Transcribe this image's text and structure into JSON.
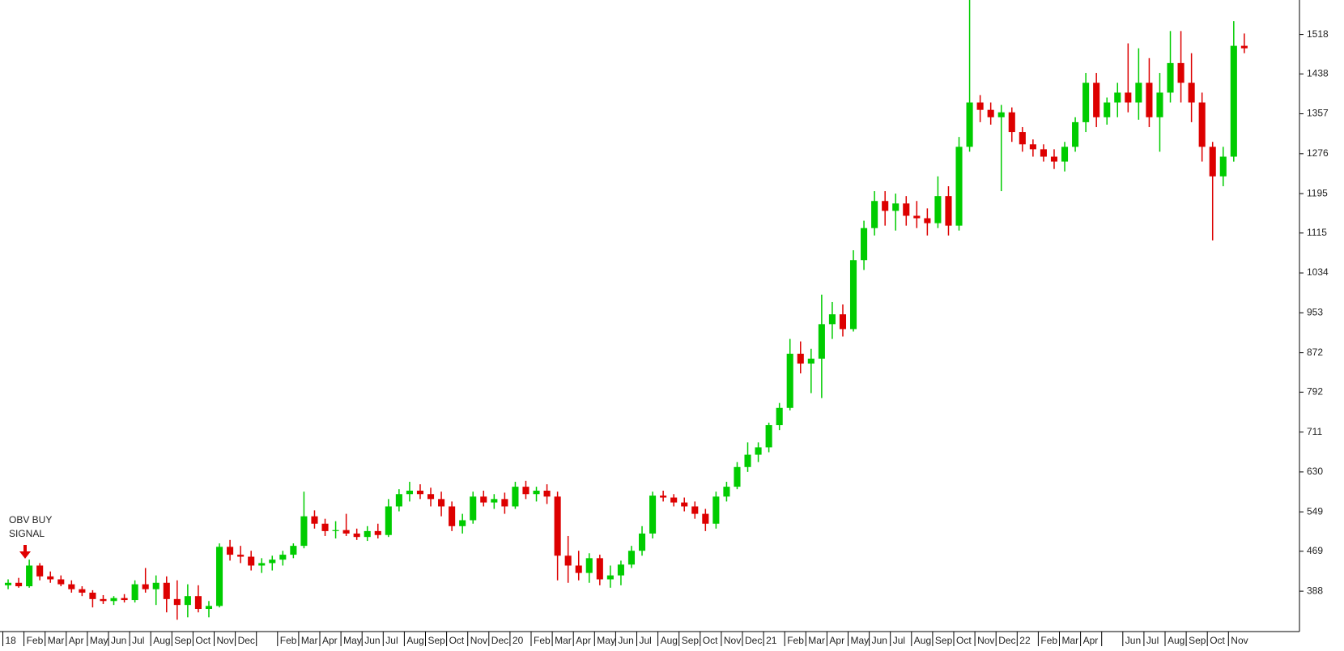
{
  "chart_data": {
    "type": "candlestick",
    "annotation": [
      "OBV BUY",
      "SIGNAL"
    ],
    "annotation_color": "#3333ff",
    "up_color": "#00cc00",
    "down_color": "#dd0000",
    "categories": [
      "18",
      "Feb",
      "Mar",
      "Apr",
      "May",
      "Jun",
      "Jul",
      "Aug",
      "Sep",
      "Oct",
      "Nov",
      "Dec",
      null,
      "Feb",
      "Mar",
      "Apr",
      "May",
      "Jun",
      "Jul",
      "Aug",
      "Sep",
      "Oct",
      "Nov",
      "Dec",
      "20",
      "Feb",
      "Mar",
      "Apr",
      "May",
      "Jun",
      "Jul",
      "Aug",
      "Sep",
      "Oct",
      "Nov",
      "Dec",
      "21",
      "Feb",
      "Mar",
      "Apr",
      "May",
      "Jun",
      "Jul",
      "Aug",
      "Sep",
      "Oct",
      "Nov",
      "Dec",
      "22",
      "Feb",
      "Mar",
      "Apr",
      null,
      "Jun",
      "Jul",
      "Aug",
      "Sep",
      "Oct",
      "Nov"
    ],
    "ylim": [
      306,
      1588
    ],
    "yticks": [
      388,
      469,
      549,
      630,
      711,
      792,
      872,
      953,
      1034,
      1115,
      1195,
      1276,
      1357,
      1438,
      1518
    ],
    "candles": [
      [
        400,
        412,
        392,
        405
      ],
      [
        405,
        415,
        395,
        398
      ],
      [
        398,
        452,
        395,
        440
      ],
      [
        440,
        445,
        410,
        418
      ],
      [
        418,
        428,
        405,
        412
      ],
      [
        412,
        420,
        398,
        402
      ],
      [
        402,
        410,
        385,
        392
      ],
      [
        392,
        398,
        378,
        385
      ],
      [
        385,
        390,
        355,
        372
      ],
      [
        372,
        380,
        362,
        368
      ],
      [
        368,
        378,
        360,
        374
      ],
      [
        374,
        382,
        365,
        370
      ],
      [
        370,
        410,
        365,
        402
      ],
      [
        402,
        435,
        385,
        392
      ],
      [
        392,
        420,
        360,
        405
      ],
      [
        405,
        418,
        345,
        372
      ],
      [
        372,
        410,
        330,
        360
      ],
      [
        360,
        402,
        335,
        378
      ],
      [
        378,
        400,
        345,
        352
      ],
      [
        352,
        368,
        335,
        358
      ],
      [
        358,
        485,
        355,
        478
      ],
      [
        478,
        492,
        450,
        462
      ],
      [
        462,
        480,
        445,
        458
      ],
      [
        458,
        470,
        430,
        440
      ],
      [
        440,
        455,
        425,
        445
      ],
      [
        445,
        460,
        430,
        452
      ],
      [
        452,
        470,
        440,
        462
      ],
      [
        462,
        485,
        455,
        480
      ],
      [
        480,
        590,
        475,
        540
      ],
      [
        540,
        552,
        515,
        525
      ],
      [
        525,
        535,
        500,
        510
      ],
      [
        510,
        530,
        495,
        512
      ],
      [
        512,
        545,
        500,
        505
      ],
      [
        505,
        515,
        492,
        498
      ],
      [
        498,
        520,
        490,
        510
      ],
      [
        510,
        525,
        495,
        502
      ],
      [
        502,
        575,
        498,
        560
      ],
      [
        560,
        595,
        550,
        585
      ],
      [
        585,
        610,
        570,
        592
      ],
      [
        592,
        605,
        575,
        585
      ],
      [
        585,
        598,
        560,
        575
      ],
      [
        575,
        590,
        540,
        560
      ],
      [
        560,
        570,
        510,
        520
      ],
      [
        520,
        545,
        505,
        532
      ],
      [
        532,
        590,
        525,
        580
      ],
      [
        580,
        592,
        560,
        568
      ],
      [
        568,
        585,
        555,
        575
      ],
      [
        575,
        588,
        545,
        560
      ],
      [
        560,
        610,
        555,
        600
      ],
      [
        600,
        612,
        575,
        585
      ],
      [
        585,
        600,
        570,
        592
      ],
      [
        592,
        605,
        565,
        580
      ],
      [
        580,
        590,
        410,
        460
      ],
      [
        460,
        500,
        405,
        440
      ],
      [
        440,
        470,
        410,
        425
      ],
      [
        425,
        465,
        405,
        455
      ],
      [
        455,
        462,
        400,
        412
      ],
      [
        412,
        440,
        395,
        420
      ],
      [
        420,
        450,
        400,
        442
      ],
      [
        442,
        480,
        435,
        470
      ],
      [
        470,
        520,
        460,
        505
      ],
      [
        505,
        590,
        495,
        582
      ],
      [
        582,
        592,
        570,
        578
      ],
      [
        578,
        585,
        560,
        568
      ],
      [
        568,
        578,
        550,
        560
      ],
      [
        560,
        570,
        535,
        545
      ],
      [
        545,
        555,
        510,
        525
      ],
      [
        525,
        590,
        515,
        580
      ],
      [
        580,
        610,
        570,
        600
      ],
      [
        600,
        650,
        595,
        640
      ],
      [
        640,
        690,
        630,
        665
      ],
      [
        665,
        690,
        650,
        680
      ],
      [
        680,
        730,
        670,
        725
      ],
      [
        725,
        770,
        715,
        760
      ],
      [
        760,
        900,
        755,
        870
      ],
      [
        870,
        895,
        830,
        850
      ],
      [
        850,
        880,
        790,
        860
      ],
      [
        860,
        990,
        780,
        930
      ],
      [
        930,
        975,
        900,
        950
      ],
      [
        950,
        970,
        905,
        920
      ],
      [
        920,
        1080,
        915,
        1060
      ],
      [
        1060,
        1140,
        1040,
        1125
      ],
      [
        1125,
        1200,
        1110,
        1180
      ],
      [
        1180,
        1200,
        1130,
        1160
      ],
      [
        1160,
        1195,
        1120,
        1175
      ],
      [
        1175,
        1190,
        1130,
        1150
      ],
      [
        1150,
        1180,
        1125,
        1145
      ],
      [
        1145,
        1165,
        1110,
        1135
      ],
      [
        1135,
        1230,
        1125,
        1190
      ],
      [
        1190,
        1210,
        1110,
        1130
      ],
      [
        1130,
        1310,
        1120,
        1290
      ],
      [
        1290,
        1588,
        1280,
        1380
      ],
      [
        1380,
        1395,
        1340,
        1365
      ],
      [
        1365,
        1380,
        1335,
        1350
      ],
      [
        1350,
        1375,
        1200,
        1360
      ],
      [
        1360,
        1370,
        1300,
        1320
      ],
      [
        1320,
        1330,
        1280,
        1295
      ],
      [
        1295,
        1305,
        1270,
        1285
      ],
      [
        1285,
        1295,
        1260,
        1270
      ],
      [
        1270,
        1285,
        1245,
        1260
      ],
      [
        1260,
        1300,
        1240,
        1290
      ],
      [
        1290,
        1350,
        1280,
        1340
      ],
      [
        1340,
        1440,
        1320,
        1420
      ],
      [
        1420,
        1440,
        1330,
        1350
      ],
      [
        1350,
        1390,
        1335,
        1380
      ],
      [
        1380,
        1420,
        1350,
        1400
      ],
      [
        1400,
        1500,
        1360,
        1380
      ],
      [
        1380,
        1490,
        1345,
        1420
      ],
      [
        1420,
        1470,
        1330,
        1350
      ],
      [
        1350,
        1440,
        1280,
        1400
      ],
      [
        1400,
        1525,
        1380,
        1460
      ],
      [
        1460,
        1525,
        1380,
        1420
      ],
      [
        1420,
        1480,
        1340,
        1380
      ],
      [
        1380,
        1400,
        1260,
        1290
      ],
      [
        1290,
        1300,
        1100,
        1230
      ],
      [
        1230,
        1290,
        1210,
        1270
      ],
      [
        1270,
        1545,
        1260,
        1495
      ],
      [
        1495,
        1520,
        1480,
        1490
      ]
    ]
  }
}
